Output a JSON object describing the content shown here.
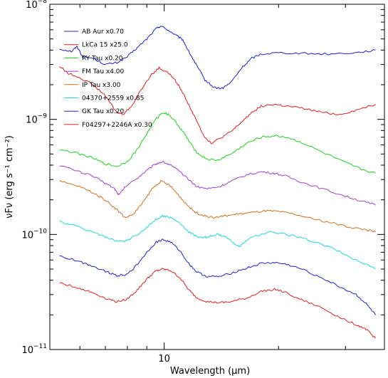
{
  "chart_data": {
    "type": "line",
    "xlabel_prefix": "Wavelength (",
    "xlabel_unit": "μm",
    "xlabel_suffix": ")",
    "ylabel": "νFν (erg s⁻¹ cm⁻²)",
    "xscale": "log",
    "yscale": "log",
    "xlim": [
      5.0,
      38.0
    ],
    "ylim": [
      1e-11,
      1e-08
    ],
    "x_tick_labels": [
      {
        "value": 10,
        "label": "10"
      }
    ],
    "y_tick_labels": [
      {
        "value": 1e-08,
        "base": "10",
        "exp": "−8"
      },
      {
        "value": 1e-09,
        "base": "10",
        "exp": "−9"
      },
      {
        "value": 1e-10,
        "base": "10",
        "exp": "−10"
      },
      {
        "value": 1e-11,
        "base": "10",
        "exp": "−11"
      }
    ],
    "grid": false,
    "legend_position": "top-left",
    "series": [
      {
        "name": "AB Aur x0.70",
        "color": "#2020d0",
        "points": [
          [
            5.3,
            4.1e-09
          ],
          [
            5.7,
            3.9e-09
          ],
          [
            5.9,
            4.3e-09
          ],
          [
            6.1,
            3.5e-09
          ],
          [
            6.5,
            3.4e-09
          ],
          [
            7.0,
            3e-09
          ],
          [
            7.5,
            3.1e-09
          ],
          [
            8.0,
            3.5e-09
          ],
          [
            8.5,
            4.2e-09
          ],
          [
            9.0,
            5e-09
          ],
          [
            9.5,
            6.1e-09
          ],
          [
            9.8,
            6.5e-09
          ],
          [
            10.2,
            6e-09
          ],
          [
            10.8,
            5.3e-09
          ],
          [
            11.2,
            4.9e-09
          ],
          [
            11.6,
            3.9e-09
          ],
          [
            12.2,
            2.9e-09
          ],
          [
            12.8,
            2.2e-09
          ],
          [
            13.5,
            1.9e-09
          ],
          [
            14.2,
            1.85e-09
          ],
          [
            15.0,
            2.1e-09
          ],
          [
            16.0,
            2.8e-09
          ],
          [
            17.0,
            3.4e-09
          ],
          [
            18.0,
            3.7e-09
          ],
          [
            20.0,
            3.8e-09
          ],
          [
            23.0,
            3.75e-09
          ],
          [
            27.0,
            3.7e-09
          ],
          [
            32.0,
            3.8e-09
          ],
          [
            36.0,
            4e-09
          ]
        ]
      },
      {
        "name": "LkCa 15 x25.0",
        "color": "#e02020",
        "points": [
          [
            5.3,
            2.9e-09
          ],
          [
            5.6,
            2.5e-09
          ],
          [
            6.0,
            2.3e-09
          ],
          [
            6.5,
            2e-09
          ],
          [
            7.0,
            1.6e-09
          ],
          [
            7.5,
            1.15e-09
          ],
          [
            7.8,
            1.1e-09
          ],
          [
            8.2,
            1.3e-09
          ],
          [
            8.7,
            1.8e-09
          ],
          [
            9.2,
            2.4e-09
          ],
          [
            9.7,
            2.8e-09
          ],
          [
            10.3,
            2.5e-09
          ],
          [
            10.8,
            2.1e-09
          ],
          [
            11.3,
            1.6e-09
          ],
          [
            11.8,
            1.2e-09
          ],
          [
            12.3,
            9e-10
          ],
          [
            12.8,
            7e-10
          ],
          [
            13.3,
            6.2e-10
          ],
          [
            14.0,
            6.8e-10
          ],
          [
            15.0,
            7.8e-10
          ],
          [
            16.0,
            9.5e-10
          ],
          [
            17.0,
            1.15e-09
          ],
          [
            18.0,
            1.3e-09
          ],
          [
            19.5,
            1.35e-09
          ],
          [
            21.0,
            1.3e-09
          ],
          [
            23.0,
            1.25e-09
          ],
          [
            26.0,
            1.15e-09
          ],
          [
            29.0,
            1.1e-09
          ],
          [
            32.0,
            1.2e-09
          ],
          [
            36.0,
            1.35e-09
          ]
        ]
      },
      {
        "name": "RY Tau x0.20",
        "color": "#20d020",
        "points": [
          [
            5.3,
            5.5e-10
          ],
          [
            6.0,
            5e-10
          ],
          [
            6.5,
            4.6e-10
          ],
          [
            7.0,
            4.1e-10
          ],
          [
            7.5,
            3.9e-10
          ],
          [
            8.0,
            4.3e-10
          ],
          [
            8.5,
            5.5e-10
          ],
          [
            9.0,
            7.5e-10
          ],
          [
            9.5,
            1e-09
          ],
          [
            9.9,
            1.15e-09
          ],
          [
            10.3,
            1.1e-09
          ],
          [
            10.8,
            9.2e-10
          ],
          [
            11.3,
            7.5e-10
          ],
          [
            11.8,
            6e-10
          ],
          [
            12.3,
            5e-10
          ],
          [
            13.0,
            4.5e-10
          ],
          [
            13.8,
            4.4e-10
          ],
          [
            15.0,
            5e-10
          ],
          [
            16.5,
            6.2e-10
          ],
          [
            18.0,
            7e-10
          ],
          [
            19.5,
            7.2e-10
          ],
          [
            21.0,
            7e-10
          ],
          [
            23.0,
            6.3e-10
          ],
          [
            26.0,
            5.2e-10
          ],
          [
            30.0,
            4.2e-10
          ],
          [
            33.0,
            3.7e-10
          ],
          [
            36.0,
            3.4e-10
          ]
        ]
      },
      {
        "name": "FM Tau x4.00",
        "color": "#a040d0",
        "points": [
          [
            5.3,
            4e-10
          ],
          [
            6.0,
            3.5e-10
          ],
          [
            6.5,
            3.2e-10
          ],
          [
            7.0,
            2.8e-10
          ],
          [
            7.4,
            2.5e-10
          ],
          [
            7.6,
            2.2e-10
          ],
          [
            7.9,
            2.6e-10
          ],
          [
            8.5,
            3.1e-10
          ],
          [
            9.0,
            3.6e-10
          ],
          [
            9.5,
            4.1e-10
          ],
          [
            9.9,
            4.3e-10
          ],
          [
            10.4,
            4e-10
          ],
          [
            11.0,
            3.5e-10
          ],
          [
            11.6,
            3e-10
          ],
          [
            12.2,
            2.6e-10
          ],
          [
            13.0,
            2.5e-10
          ],
          [
            14.0,
            2.6e-10
          ],
          [
            15.0,
            2.9e-10
          ],
          [
            16.5,
            3.3e-10
          ],
          [
            18.0,
            3.5e-10
          ],
          [
            19.5,
            3.4e-10
          ],
          [
            21.0,
            3.2e-10
          ],
          [
            23.0,
            2.85e-10
          ],
          [
            26.0,
            2.5e-10
          ],
          [
            30.0,
            2.15e-10
          ],
          [
            33.0,
            1.95e-10
          ],
          [
            36.0,
            1.8e-10
          ]
        ]
      },
      {
        "name": "IP Tau x3.00",
        "color": "#d07020",
        "points": [
          [
            5.3,
            2.9e-10
          ],
          [
            6.0,
            2.6e-10
          ],
          [
            6.5,
            2.3e-10
          ],
          [
            7.0,
            2e-10
          ],
          [
            7.5,
            1.65e-10
          ],
          [
            7.9,
            1.4e-10
          ],
          [
            8.3,
            1.5e-10
          ],
          [
            8.8,
            1.9e-10
          ],
          [
            9.3,
            2.5e-10
          ],
          [
            9.8,
            2.9e-10
          ],
          [
            10.3,
            2.7e-10
          ],
          [
            10.9,
            2.2e-10
          ],
          [
            11.5,
            1.8e-10
          ],
          [
            12.1,
            1.55e-10
          ],
          [
            12.8,
            1.45e-10
          ],
          [
            13.5,
            1.4e-10
          ],
          [
            14.5,
            1.45e-10
          ],
          [
            15.5,
            1.5e-10
          ],
          [
            17.0,
            1.55e-10
          ],
          [
            18.5,
            1.6e-10
          ],
          [
            20.0,
            1.58e-10
          ],
          [
            22.0,
            1.5e-10
          ],
          [
            25.0,
            1.35e-10
          ],
          [
            28.0,
            1.25e-10
          ],
          [
            31.0,
            1.15e-10
          ],
          [
            34.0,
            1.1e-10
          ],
          [
            36.0,
            1.05e-10
          ]
        ]
      },
      {
        "name": "04370+2559 x0.85",
        "color": "#20d8d8",
        "points": [
          [
            5.3,
            1.3e-10
          ],
          [
            6.0,
            1.15e-10
          ],
          [
            6.5,
            1.05e-10
          ],
          [
            7.0,
            9.5e-11
          ],
          [
            7.5,
            8.7e-11
          ],
          [
            8.0,
            8.8e-11
          ],
          [
            8.5,
            1e-10
          ],
          [
            9.0,
            1.15e-10
          ],
          [
            9.5,
            1.35e-10
          ],
          [
            9.9,
            1.45e-10
          ],
          [
            10.4,
            1.4e-10
          ],
          [
            11.0,
            1.25e-10
          ],
          [
            11.6,
            1.05e-10
          ],
          [
            12.3,
            9.5e-11
          ],
          [
            13.0,
            9.5e-11
          ],
          [
            13.8,
            1e-10
          ],
          [
            14.5,
            9.5e-11
          ],
          [
            15.2,
            8.5e-11
          ],
          [
            15.8,
            7.8e-11
          ],
          [
            16.4,
            8.8e-11
          ],
          [
            17.5,
            9.8e-11
          ],
          [
            19.0,
            1.05e-10
          ],
          [
            21.0,
            1e-10
          ],
          [
            24.0,
            9e-11
          ],
          [
            28.0,
            7.5e-11
          ],
          [
            32.0,
            6e-11
          ],
          [
            36.0,
            5e-11
          ]
        ]
      },
      {
        "name": "GK Tau x0.20",
        "color": "#2020d0",
        "points": [
          [
            5.3,
            6.5e-11
          ],
          [
            6.0,
            5.8e-11
          ],
          [
            6.5,
            5.3e-11
          ],
          [
            7.0,
            4.8e-11
          ],
          [
            7.5,
            4.4e-11
          ],
          [
            8.0,
            4.5e-11
          ],
          [
            8.5,
            5.5e-11
          ],
          [
            9.0,
            7e-11
          ],
          [
            9.5,
            8.5e-11
          ],
          [
            9.9,
            9e-11
          ],
          [
            10.4,
            8.6e-11
          ],
          [
            11.0,
            7.2e-11
          ],
          [
            11.6,
            5.6e-11
          ],
          [
            12.2,
            4.7e-11
          ],
          [
            13.0,
            4.3e-11
          ],
          [
            14.0,
            4.3e-11
          ],
          [
            15.0,
            4.6e-11
          ],
          [
            16.5,
            5.1e-11
          ],
          [
            18.0,
            5.6e-11
          ],
          [
            19.5,
            5.7e-11
          ],
          [
            21.0,
            5.5e-11
          ],
          [
            23.0,
            5e-11
          ],
          [
            26.0,
            4.2e-11
          ],
          [
            29.0,
            3.5e-11
          ],
          [
            32.0,
            3e-11
          ],
          [
            34.0,
            2.5e-11
          ],
          [
            36.0,
            2e-11
          ]
        ]
      },
      {
        "name": "F04297+2246A x0.30",
        "color": "#e02020",
        "points": [
          [
            5.3,
            3.8e-11
          ],
          [
            6.0,
            3.4e-11
          ],
          [
            6.5,
            3.1e-11
          ],
          [
            7.0,
            2.8e-11
          ],
          [
            7.5,
            2.6e-11
          ],
          [
            8.0,
            2.75e-11
          ],
          [
            8.5,
            3.3e-11
          ],
          [
            9.0,
            4.1e-11
          ],
          [
            9.5,
            4.8e-11
          ],
          [
            9.9,
            5e-11
          ],
          [
            10.4,
            4.85e-11
          ],
          [
            11.0,
            4.2e-11
          ],
          [
            11.6,
            3.3e-11
          ],
          [
            12.2,
            2.8e-11
          ],
          [
            13.0,
            2.6e-11
          ],
          [
            14.0,
            2.55e-11
          ],
          [
            15.0,
            2.6e-11
          ],
          [
            16.5,
            2.8e-11
          ],
          [
            18.0,
            3.2e-11
          ],
          [
            19.5,
            3.35e-11
          ],
          [
            21.0,
            3.1e-11
          ],
          [
            23.0,
            2.7e-11
          ],
          [
            26.0,
            2.3e-11
          ],
          [
            29.0,
            1.9e-11
          ],
          [
            32.0,
            1.65e-11
          ],
          [
            34.0,
            1.5e-11
          ],
          [
            36.0,
            1.25e-11
          ]
        ]
      }
    ]
  }
}
